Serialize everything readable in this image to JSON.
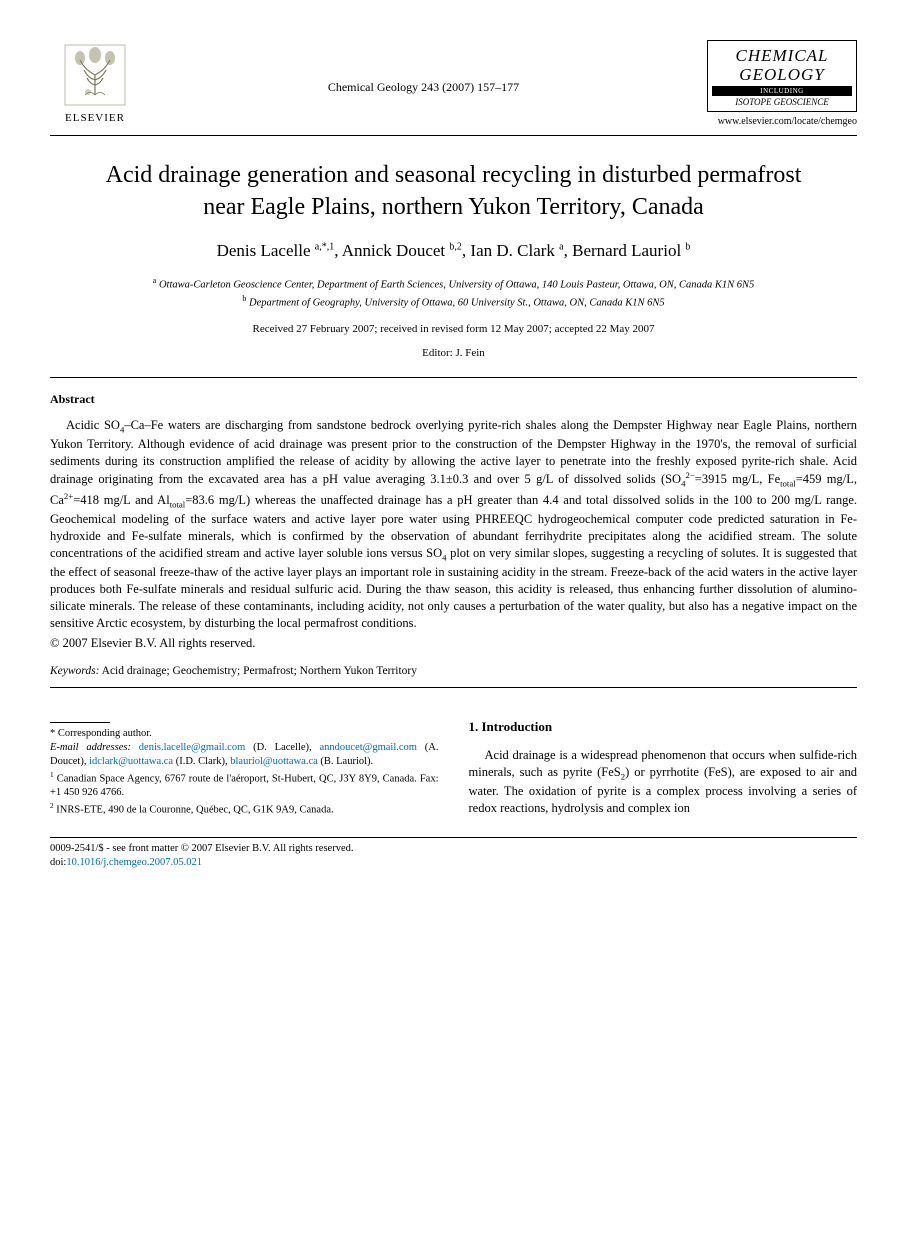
{
  "header": {
    "publisher_name": "ELSEVIER",
    "journal_ref": "Chemical Geology 243 (2007) 157–177",
    "journal_name_line1": "CHEMICAL",
    "journal_name_line2": "GEOLOGY",
    "isotope_bar": "INCLUDING",
    "isotope_sub": "ISOTOPE GEOSCIENCE",
    "journal_url": "www.elsevier.com/locate/chemgeo"
  },
  "title": "Acid drainage generation and seasonal recycling in disturbed permafrost near Eagle Plains, northern Yukon Territory, Canada",
  "authors_html": "Denis Lacelle <sup>a,*,1</sup>, Annick Doucet <sup>b,2</sup>, Ian D. Clark <sup>a</sup>, Bernard Lauriol <sup>b</sup>",
  "affiliations": {
    "a": "Ottawa-Carleton Geoscience Center, Department of Earth Sciences, University of Ottawa, 140 Louis Pasteur, Ottawa, ON, Canada K1N 6N5",
    "b": "Department of Geography, University of Ottawa, 60 University St., Ottawa, ON, Canada K1N 6N5"
  },
  "dates": "Received 27 February 2007; received in revised form 12 May 2007; accepted 22 May 2007",
  "editor": "Editor: J. Fein",
  "abstract": {
    "heading": "Abstract",
    "body_html": "Acidic SO<sub>4</sub>–Ca–Fe waters are discharging from sandstone bedrock overlying pyrite-rich shales along the Dempster Highway near Eagle Plains, northern Yukon Territory. Although evidence of acid drainage was present prior to the construction of the Dempster Highway in the 1970's, the removal of surficial sediments during its construction amplified the release of acidity by allowing the active layer to penetrate into the freshly exposed pyrite-rich shale. Acid drainage originating from the excavated area has a pH value averaging 3.1±0.3 and over 5 g/L of dissolved solids (SO<sub>4</sub><sup>2−</sup>=3915 mg/L, Fe<sub>total</sub>=459 mg/L, Ca<sup>2+</sup>=418 mg/L and Al<sub>total</sub>=83.6 mg/L) whereas the unaffected drainage has a pH greater than 4.4 and total dissolved solids in the 100 to 200 mg/L range. Geochemical modeling of the surface waters and active layer pore water using PHREEQC hydrogeochemical computer code predicted saturation in Fe-hydroxide and Fe-sulfate minerals, which is confirmed by the observation of abundant ferrihydrite precipitates along the acidified stream. The solute concentrations of the acidified stream and active layer soluble ions versus SO<sub>4</sub> plot on very similar slopes, suggesting a recycling of solutes. It is suggested that the effect of seasonal freeze-thaw of the active layer plays an important role in sustaining acidity in the stream. Freeze-back of the acid waters in the active layer produces both Fe-sulfate minerals and residual sulfuric acid. During the thaw season, this acidity is released, thus enhancing further dissolution of alumino-silicate minerals. The release of these contaminants, including acidity, not only causes a perturbation of the water quality, but also has a negative impact on the sensitive Arctic ecosystem, by disturbing the local permafrost conditions.",
    "copyright": "© 2007 Elsevier B.V. All rights reserved."
  },
  "keywords": {
    "label": "Keywords:",
    "text": " Acid drainage; Geochemistry; Permafrost; Northern Yukon Territory"
  },
  "footnotes": {
    "corresponding": "* Corresponding author.",
    "email_label": "E-mail addresses:",
    "emails": [
      {
        "addr": "denis.lacelle@gmail.com",
        "who": "(D. Lacelle),"
      },
      {
        "addr": "anndoucet@gmail.com",
        "who": "(A. Doucet),"
      },
      {
        "addr": "idclark@uottawa.ca",
        "who": "(I.D. Clark),"
      },
      {
        "addr": "blauriol@uottawa.ca",
        "who": "(B. Lauriol)."
      }
    ],
    "note1": "Canadian Space Agency, 6767 route de l'aéroport, St-Hubert, QC, J3Y 8Y9, Canada. Fax: +1 450 926 4766.",
    "note2": "INRS-ETE, 490 de la Couronne, Québec, QC, G1K 9A9, Canada."
  },
  "intro": {
    "heading": "1. Introduction",
    "body_html": "Acid drainage is a widespread phenomenon that occurs when sulfide-rich minerals, such as pyrite (FeS<sub>2</sub>) or pyrrhotite (FeS), are exposed to air and water. The oxidation of pyrite is a complex process involving a series of redox reactions, hydrolysis and complex ion"
  },
  "bottom": {
    "issn_line": "0009-2541/$ - see front matter © 2007 Elsevier B.V. All rights reserved.",
    "doi_label": "doi:",
    "doi": "10.1016/j.chemgeo.2007.05.021"
  },
  "colors": {
    "text": "#000000",
    "link": "#0066cc",
    "background": "#ffffff"
  }
}
